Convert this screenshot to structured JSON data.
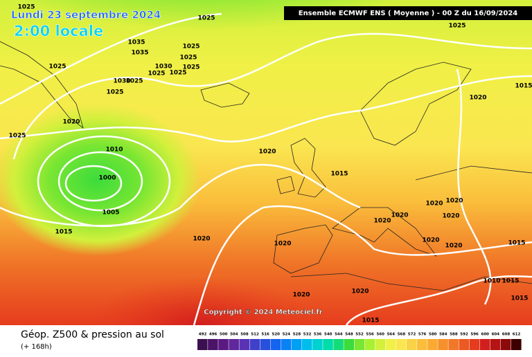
{
  "header": {
    "date": "Lundi 23 septembre 2024",
    "time": "2:00 locale",
    "run": "Ensemble ECMWF ENS  ( Moyenne )  -  00 Z du 16/09/2024"
  },
  "copyright": "Copyright © 2024 Meteociel.fr",
  "footer": {
    "title": "Géop. Z500 & pression au sol",
    "lead": "(+ 168h)"
  },
  "isobar_labels": [
    1025,
    1025,
    1025,
    1035,
    1035,
    1025,
    1025,
    1030,
    1025,
    1025,
    1025,
    1025,
    1030,
    1025,
    1025,
    1015,
    1020,
    1020,
    1025,
    1010,
    1020,
    1015,
    1000,
    1005,
    1015,
    1020,
    1020,
    1020,
    1020,
    1020,
    1020,
    1020,
    1020,
    1020,
    1015,
    1010,
    1015,
    1020,
    1020,
    1015,
    1015
  ],
  "scale": {
    "values": [
      492,
      496,
      500,
      504,
      508,
      512,
      516,
      520,
      524,
      528,
      532,
      536,
      540,
      544,
      548,
      552,
      556,
      560,
      564,
      568,
      572,
      576,
      580,
      584,
      588,
      592,
      596,
      600,
      604,
      608,
      612
    ],
    "colors": [
      "#3c1050",
      "#4b1468",
      "#5a1a82",
      "#60289c",
      "#5a32b4",
      "#4040c8",
      "#2850dc",
      "#1464f0",
      "#0a82f5",
      "#00a0f5",
      "#00beeb",
      "#00d2d2",
      "#00dcaa",
      "#14dc78",
      "#3cdc3c",
      "#78e632",
      "#aaf032",
      "#d2f03c",
      "#f0f046",
      "#fae650",
      "#fad246",
      "#fabe3c",
      "#faaa32",
      "#f5912d",
      "#f07828",
      "#eb5a23",
      "#e63c1e",
      "#d21e1e",
      "#b41414",
      "#8c0a0a",
      "#3c0000"
    ]
  }
}
